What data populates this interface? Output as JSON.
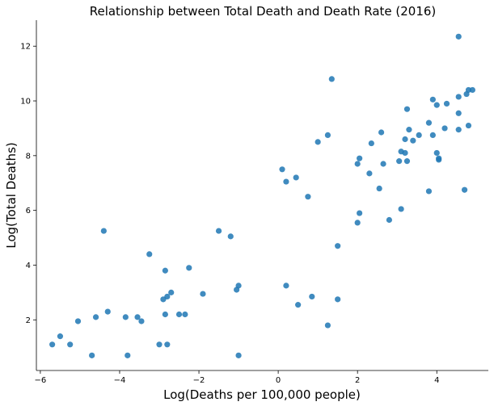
{
  "chart_data": {
    "type": "scatter",
    "title": "Relationship between Total Death and Death Rate (2016)",
    "xlabel": "Log(Deaths per 100,000 people)",
    "ylabel": "Log(Total Deaths)",
    "xlim": [
      -6.1,
      5.3
    ],
    "ylim": [
      0.15,
      12.95
    ],
    "xticks": [
      -6,
      -4,
      -2,
      0,
      2,
      4
    ],
    "yticks": [
      2,
      4,
      6,
      8,
      10,
      12
    ],
    "grid": false,
    "color": "#1f77b4",
    "points": [
      [
        -5.7,
        1.1
      ],
      [
        -5.5,
        1.4
      ],
      [
        -5.25,
        1.1
      ],
      [
        -5.05,
        1.95
      ],
      [
        -4.7,
        0.7
      ],
      [
        -4.6,
        2.1
      ],
      [
        -4.4,
        5.25
      ],
      [
        -4.3,
        2.3
      ],
      [
        -3.85,
        2.1
      ],
      [
        -3.8,
        0.7
      ],
      [
        -3.55,
        2.1
      ],
      [
        -3.45,
        1.95
      ],
      [
        -3.25,
        4.4
      ],
      [
        -3.0,
        1.1
      ],
      [
        -2.9,
        2.75
      ],
      [
        -2.85,
        3.8
      ],
      [
        -2.8,
        1.1
      ],
      [
        -2.85,
        2.2
      ],
      [
        -2.8,
        2.85
      ],
      [
        -2.7,
        3.0
      ],
      [
        -2.5,
        2.2
      ],
      [
        -2.35,
        2.2
      ],
      [
        -2.25,
        3.9
      ],
      [
        -1.9,
        2.95
      ],
      [
        -1.5,
        5.25
      ],
      [
        -1.2,
        5.05
      ],
      [
        -1.05,
        3.1
      ],
      [
        -1.0,
        3.25
      ],
      [
        -1.0,
        0.7
      ],
      [
        0.1,
        7.5
      ],
      [
        0.2,
        7.05
      ],
      [
        0.45,
        7.2
      ],
      [
        0.2,
        3.25
      ],
      [
        0.5,
        2.55
      ],
      [
        0.75,
        6.5
      ],
      [
        0.85,
        2.85
      ],
      [
        1.0,
        8.5
      ],
      [
        1.25,
        8.75
      ],
      [
        1.25,
        1.8
      ],
      [
        1.35,
        10.8
      ],
      [
        1.5,
        4.7
      ],
      [
        1.5,
        2.75
      ],
      [
        2.0,
        7.7
      ],
      [
        2.05,
        7.9
      ],
      [
        2.0,
        5.55
      ],
      [
        2.05,
        5.9
      ],
      [
        2.3,
        7.35
      ],
      [
        2.35,
        8.45
      ],
      [
        2.55,
        6.8
      ],
      [
        2.6,
        8.85
      ],
      [
        2.65,
        7.7
      ],
      [
        2.8,
        5.65
      ],
      [
        3.05,
        7.8
      ],
      [
        3.1,
        8.15
      ],
      [
        3.2,
        8.1
      ],
      [
        3.2,
        8.6
      ],
      [
        3.25,
        7.8
      ],
      [
        3.25,
        9.7
      ],
      [
        3.3,
        8.95
      ],
      [
        3.4,
        8.55
      ],
      [
        3.55,
        8.75
      ],
      [
        3.1,
        6.05
      ],
      [
        3.8,
        9.2
      ],
      [
        3.8,
        6.7
      ],
      [
        3.9,
        10.05
      ],
      [
        3.9,
        8.75
      ],
      [
        4.0,
        9.85
      ],
      [
        4.0,
        8.1
      ],
      [
        4.05,
        7.85
      ],
      [
        4.05,
        7.9
      ],
      [
        4.2,
        9.0
      ],
      [
        4.25,
        9.9
      ],
      [
        4.55,
        12.35
      ],
      [
        4.55,
        9.55
      ],
      [
        4.55,
        10.15
      ],
      [
        4.55,
        8.95
      ],
      [
        4.7,
        6.75
      ],
      [
        4.75,
        10.25
      ],
      [
        4.8,
        10.4
      ],
      [
        4.8,
        9.1
      ],
      [
        4.9,
        10.4
      ]
    ]
  }
}
